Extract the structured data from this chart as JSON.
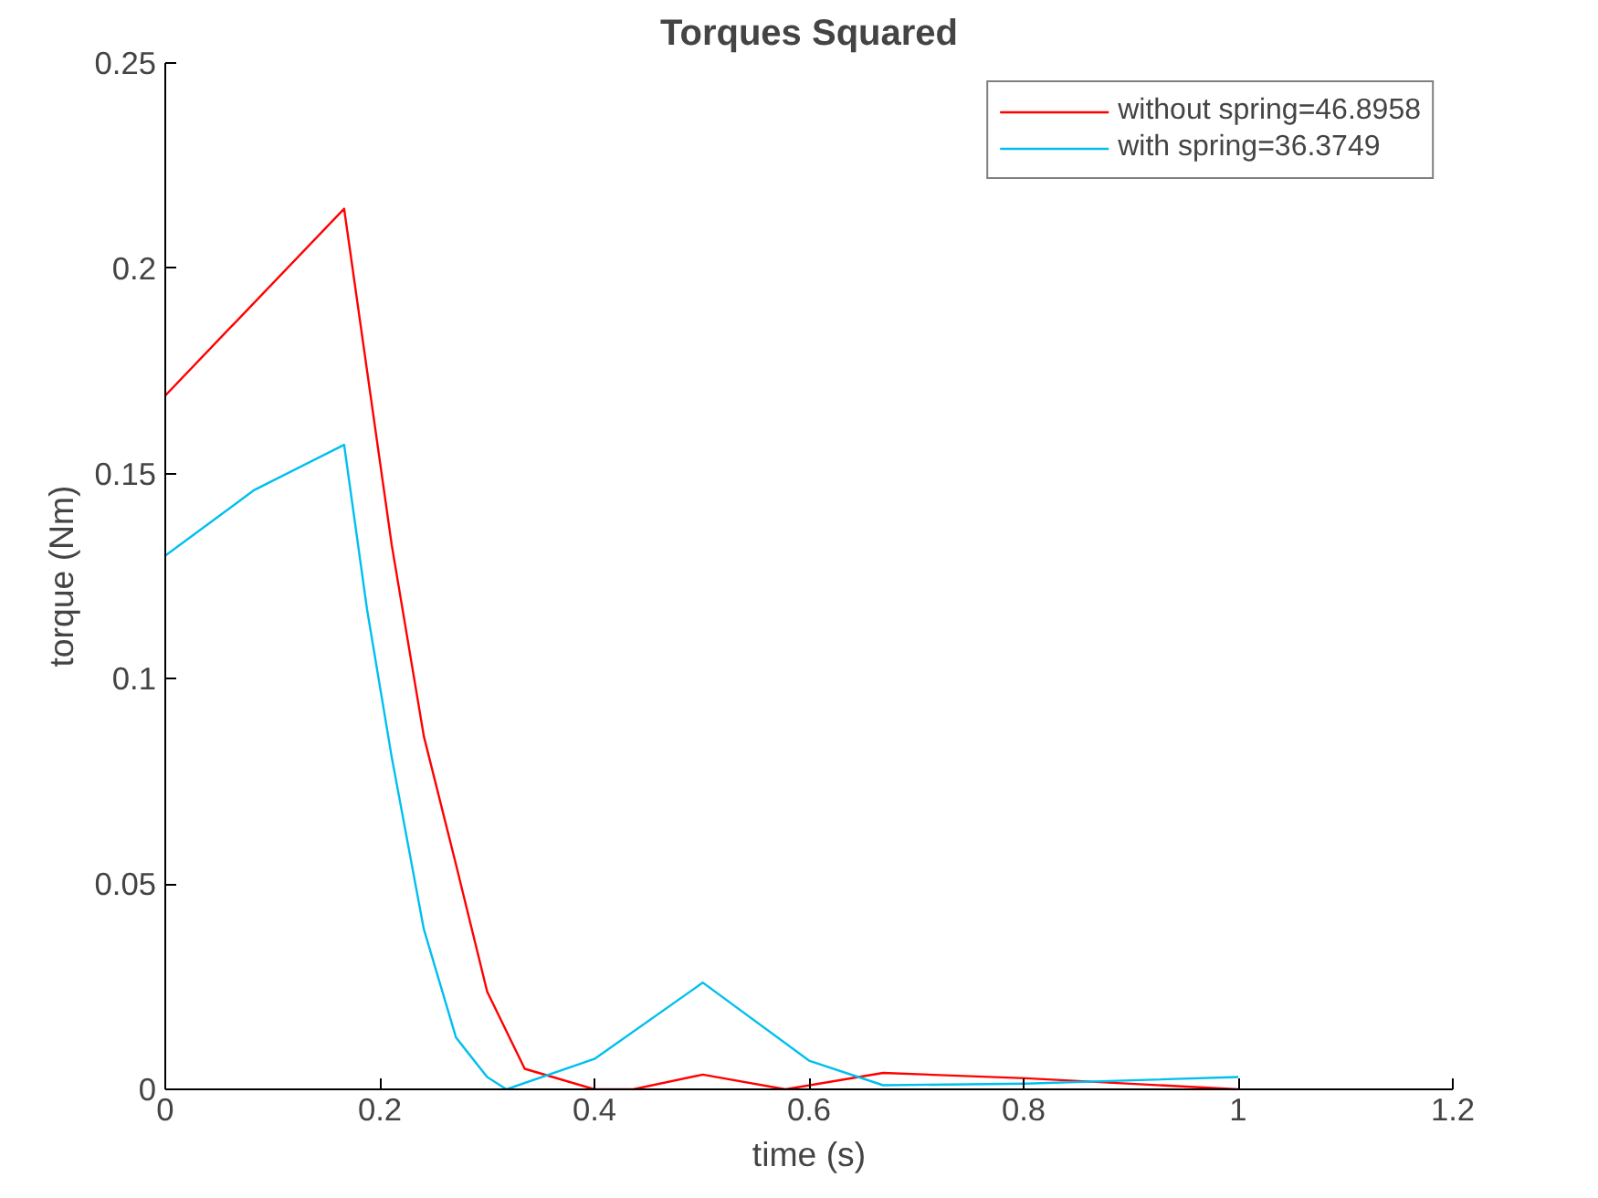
{
  "chart_data": {
    "type": "line",
    "title": "Torques Squared",
    "xlabel": "time (s)",
    "ylabel": "torque (Nm)",
    "xlim": [
      0,
      1.2
    ],
    "ylim": [
      0,
      0.25
    ],
    "xticks": [
      0,
      0.2,
      0.4,
      0.6,
      0.8,
      1,
      1.2
    ],
    "yticks": [
      0,
      0.05,
      0.1,
      0.15,
      0.2,
      0.25
    ],
    "grid": false,
    "legend": "top right",
    "marker": "none",
    "line_style": "solid",
    "series": [
      {
        "name": "without spring=46.8958",
        "color": "#ff0000",
        "x": [
          0,
          0.1667,
          0.211,
          0.241,
          0.271,
          0.3,
          0.335,
          0.4,
          0.436,
          0.501,
          0.578,
          0.669,
          0.802,
          1.0
        ],
        "values": [
          0.169,
          0.2145,
          0.1327,
          0.086,
          0.0547,
          0.0238,
          0.005,
          0,
          0,
          0.0036,
          0,
          0.004,
          0.0027,
          0
        ]
      },
      {
        "name": "with spring=36.3749",
        "color": "#00bfef",
        "x": [
          0,
          0.083,
          0.1667,
          0.188,
          0.211,
          0.241,
          0.271,
          0.3,
          0.318,
          0.4,
          0.501,
          0.6,
          0.669,
          0.802,
          1.0
        ],
        "values": [
          0.13,
          0.146,
          0.157,
          0.117,
          0.081,
          0.039,
          0.0126,
          0.003,
          0,
          0.0074,
          0.026,
          0.007,
          0.001,
          0.0014,
          0.003
        ]
      }
    ]
  }
}
